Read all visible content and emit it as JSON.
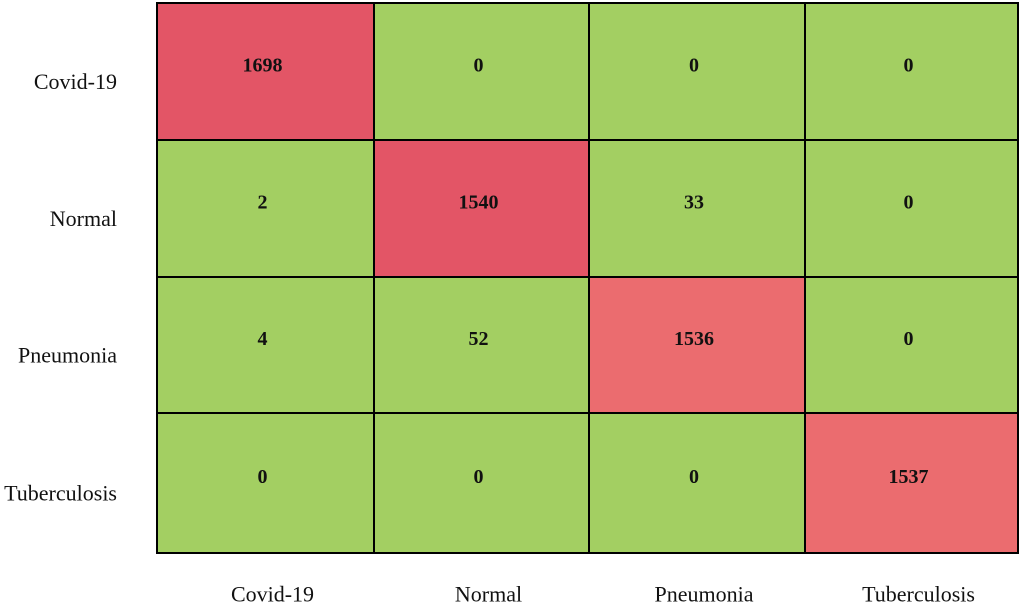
{
  "chart_data": {
    "type": "heatmap",
    "title": "",
    "xlabel": "",
    "ylabel": "",
    "row_labels": [
      "Covid-19",
      "Normal",
      "Pneumonia",
      "Tuberculosis"
    ],
    "col_labels": [
      "Covid-19",
      "Normal",
      "Pneumonia",
      "Tuberculosis"
    ],
    "values": [
      [
        1698,
        0,
        0,
        0
      ],
      [
        2,
        1540,
        33,
        0
      ],
      [
        4,
        52,
        1536,
        0
      ],
      [
        0,
        0,
        0,
        1537
      ]
    ],
    "colors": {
      "off_diagonal": "#a3cf62",
      "diagonal_strong": "#e35566",
      "diagonal_light": "#eb6c6f"
    },
    "diagonal_shades": [
      "#e35566",
      "#e35566",
      "#eb6c6f",
      "#eb6c6f"
    ],
    "grid": true
  }
}
